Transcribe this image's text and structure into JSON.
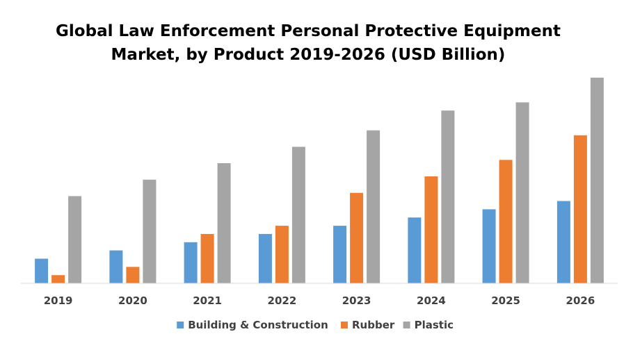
{
  "chart_data": {
    "type": "bar",
    "title": "Global Law Enforcement Personal Protective Equipment Market, by Product 2019-2026 (USD Billion)",
    "title_lines": [
      "Global Law Enforcement Personal Protective Equipment",
      "Market, by Product 2019-2026 (USD Billion)"
    ],
    "categories": [
      "2019",
      "2020",
      "2021",
      "2022",
      "2023",
      "2024",
      "2025",
      "2026"
    ],
    "series": [
      {
        "name": "Building & Construction",
        "color": "#5B9BD5",
        "values": [
          1.5,
          2.0,
          2.5,
          3.0,
          3.5,
          4.0,
          4.5,
          5.0
        ]
      },
      {
        "name": "Rubber",
        "color": "#ED7D31",
        "values": [
          0.5,
          1.0,
          3.0,
          3.5,
          5.5,
          6.5,
          7.5,
          9.0
        ]
      },
      {
        "name": "Plastic",
        "color": "#A5A5A5",
        "values": [
          5.3,
          6.3,
          7.3,
          8.3,
          9.3,
          10.5,
          11.0,
          12.5
        ]
      }
    ],
    "ylim": [
      0,
      13
    ],
    "xlabel": "",
    "ylabel": "",
    "grid": false,
    "legend_position": "bottom",
    "axis_color": "#D9D9D9"
  }
}
